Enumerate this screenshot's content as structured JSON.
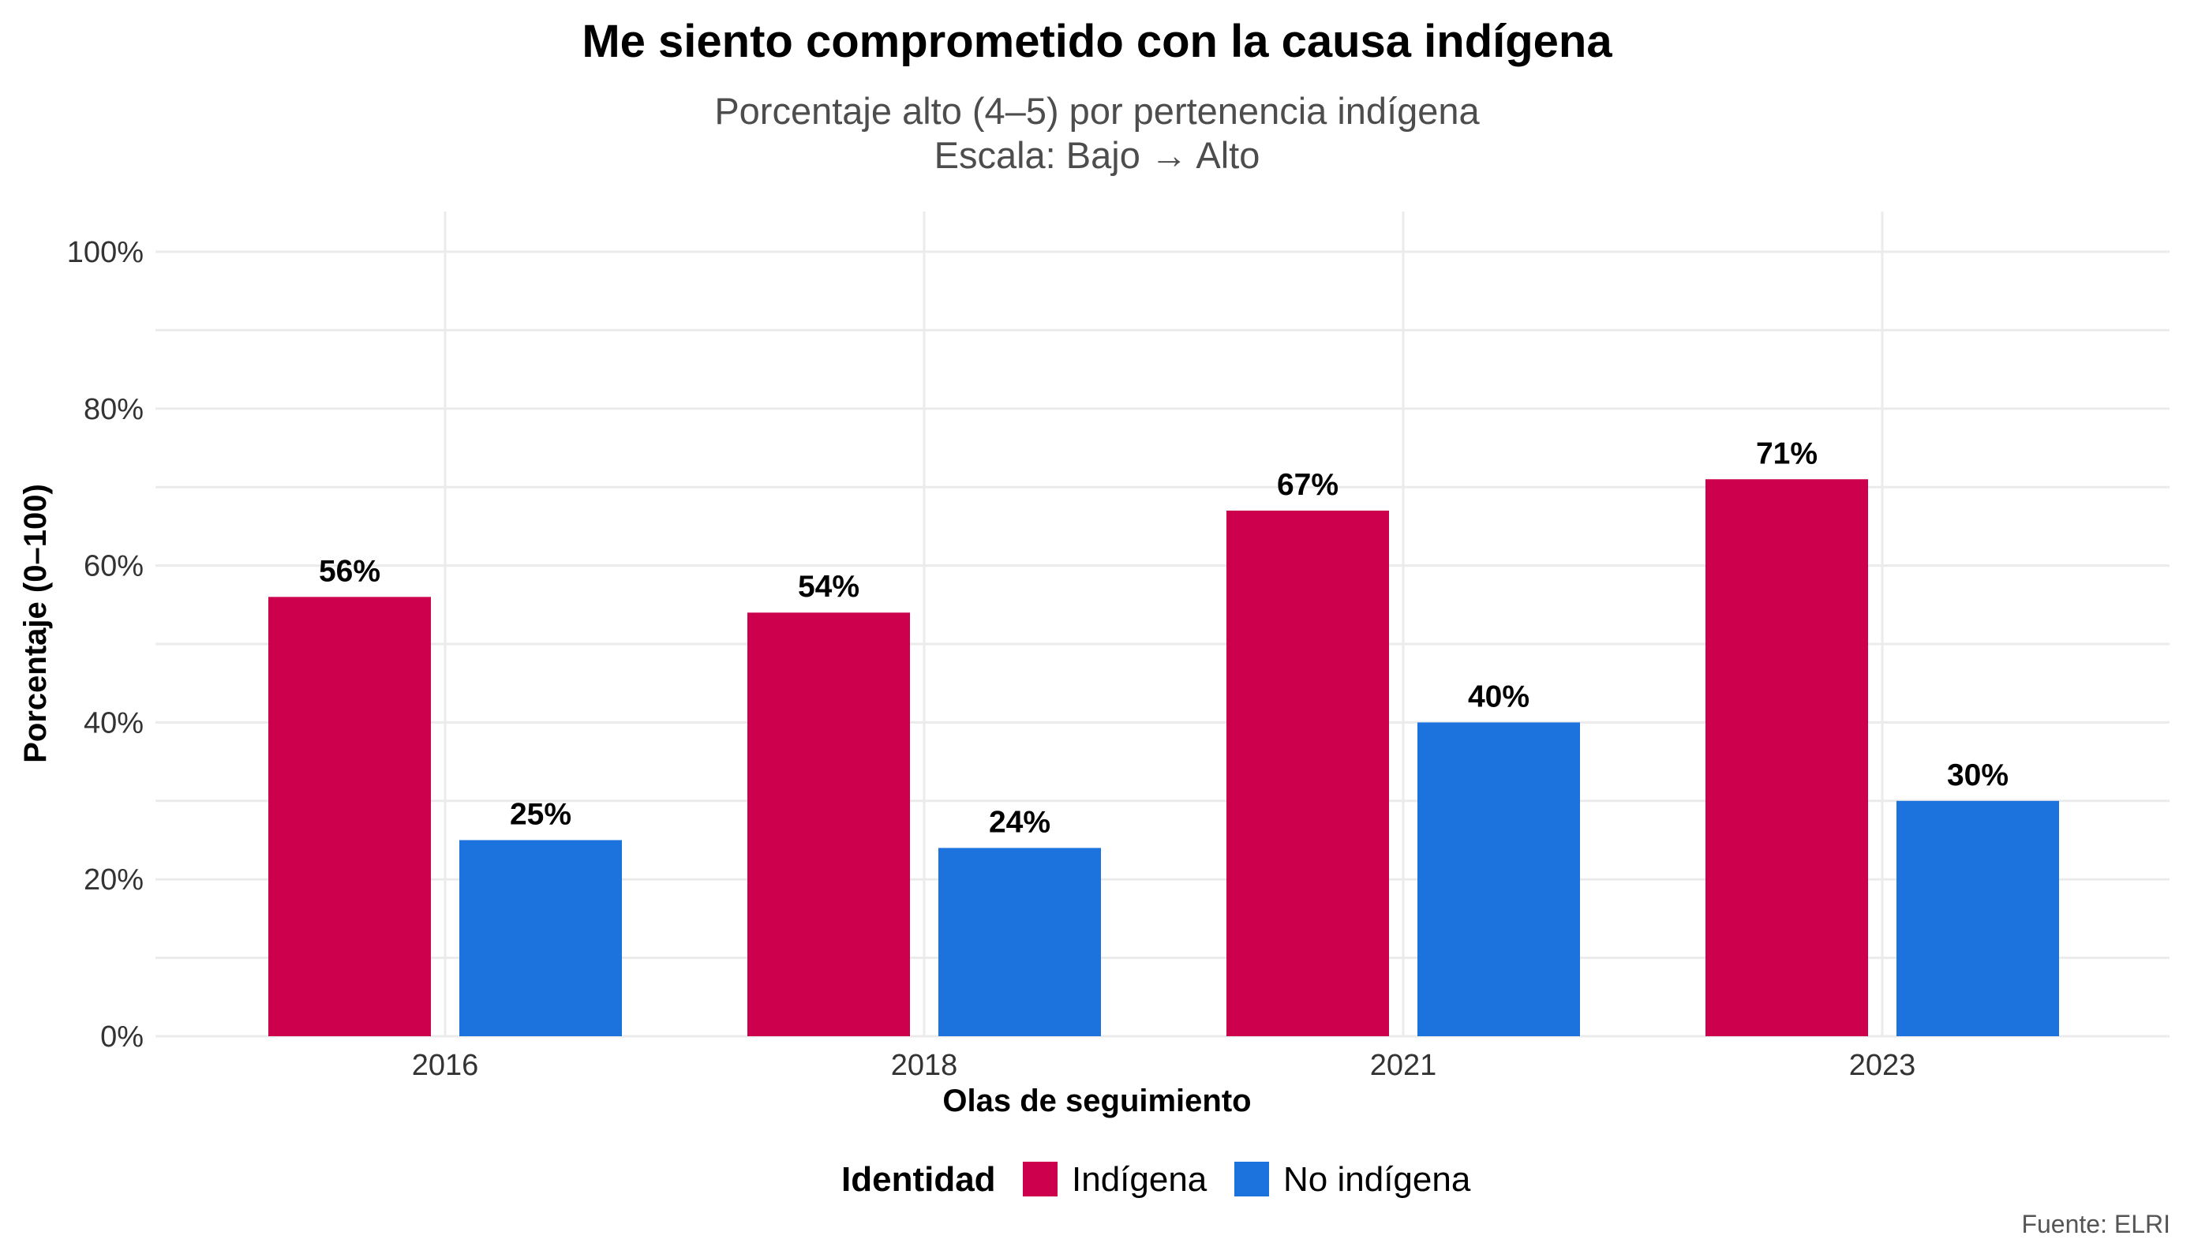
{
  "chart_data": {
    "type": "bar",
    "title": "Me siento comprometido con la causa indígena",
    "subtitle_lines": [
      "Porcentaje alto (4–5) por pertenencia indígena",
      "Escala: Bajo → Alto"
    ],
    "xlabel": "Olas de seguimiento",
    "ylabel": "Porcentaje (0–100)",
    "ylim": [
      0,
      100
    ],
    "yticks": [
      0,
      20,
      40,
      60,
      80,
      100
    ],
    "ytick_labels": [
      "0%",
      "20%",
      "40%",
      "60%",
      "80%",
      "100%"
    ],
    "categories": [
      "2016",
      "2018",
      "2021",
      "2023"
    ],
    "series": [
      {
        "name": "Indígena",
        "color": "#CC004C",
        "values": [
          56,
          54,
          67,
          71
        ],
        "labels": [
          "56%",
          "54%",
          "67%",
          "71%"
        ]
      },
      {
        "name": "No indígena",
        "color": "#1C73DE",
        "values": [
          25,
          24,
          40,
          30
        ],
        "labels": [
          "25%",
          "24%",
          "40%",
          "30%"
        ]
      }
    ],
    "legend": {
      "title": "Identidad",
      "position": "bottom"
    },
    "grid": true,
    "caption": "Fuente: ELRI"
  }
}
